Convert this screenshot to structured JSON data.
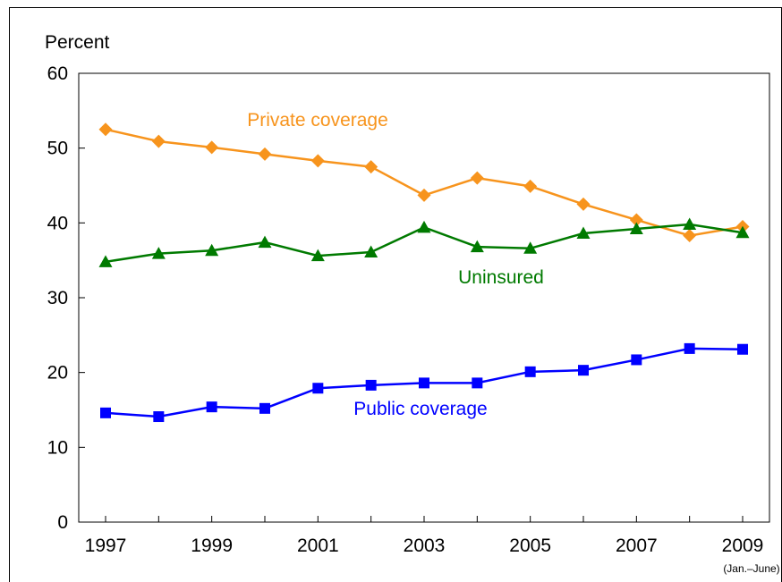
{
  "chart_data": {
    "type": "line",
    "ylabel": "Percent",
    "xlabel": "",
    "ylim": [
      0,
      60
    ],
    "yticks": [
      0,
      10,
      20,
      30,
      40,
      50,
      60
    ],
    "xlim": [
      1997,
      2009
    ],
    "x": [
      1997,
      1998,
      1999,
      2000,
      2001,
      2002,
      2003,
      2004,
      2005,
      2006,
      2007,
      2008,
      2009
    ],
    "xtick_labels": [
      "1997",
      "1999",
      "2001",
      "2003",
      "2005",
      "2007",
      "2009"
    ],
    "xtick_values": [
      1997,
      1999,
      2001,
      2003,
      2005,
      2007,
      2009
    ],
    "x_note": "(Jan.–June)",
    "grid": false,
    "series": [
      {
        "name": "Private coverage",
        "color": "#f7941d",
        "marker": "diamond",
        "values": [
          52.5,
          50.9,
          50.1,
          49.2,
          48.3,
          47.5,
          43.7,
          46.0,
          44.9,
          42.5,
          40.4,
          38.3,
          39.5
        ]
      },
      {
        "name": "Uninsured",
        "color": "#007a00",
        "marker": "triangle",
        "values": [
          34.8,
          35.9,
          36.3,
          37.4,
          35.6,
          36.1,
          39.4,
          36.8,
          36.6,
          38.6,
          39.2,
          39.8,
          38.7
        ]
      },
      {
        "name": "Public coverage",
        "color": "#0000ff",
        "marker": "square",
        "values": [
          14.6,
          14.1,
          15.4,
          15.2,
          17.9,
          18.3,
          18.6,
          18.6,
          20.1,
          20.3,
          21.7,
          23.2,
          23.1
        ]
      }
    ]
  }
}
